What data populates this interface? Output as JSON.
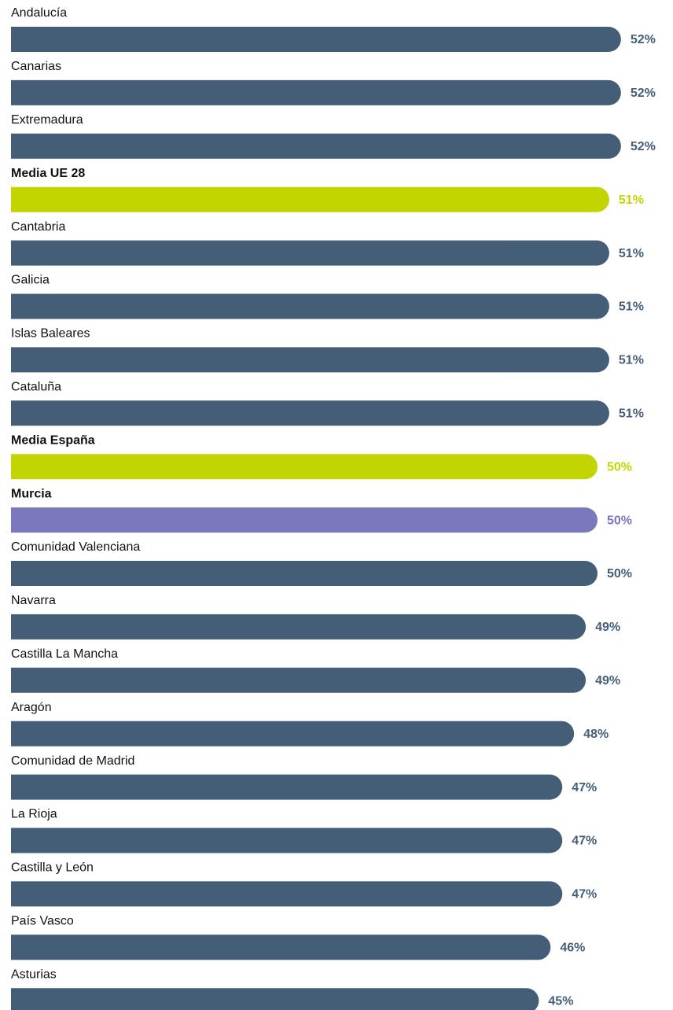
{
  "chart_data": {
    "type": "bar",
    "orientation": "horizontal",
    "categories": [
      "Andalucía",
      "Canarias",
      "Extremadura",
      "Media UE 28",
      "Cantabria",
      "Galicia",
      "Islas Baleares",
      "Cataluña",
      "Media España",
      "Murcia",
      "Comunidad Valenciana",
      "Navarra",
      "Castilla La Mancha",
      "Aragón",
      "Comunidad de Madrid",
      "La Rioja",
      "Castilla y León",
      "País Vasco",
      "Asturias"
    ],
    "values": [
      52,
      52,
      52,
      51,
      51,
      51,
      51,
      51,
      50,
      50,
      50,
      49,
      49,
      48,
      47,
      47,
      47,
      46,
      45
    ],
    "value_labels": [
      "52%",
      "52%",
      "52%",
      "51%",
      "51%",
      "51%",
      "51%",
      "51%",
      "50%",
      "50%",
      "50%",
      "49%",
      "49%",
      "48%",
      "47%",
      "47%",
      "47%",
      "46%",
      "45%"
    ],
    "color": "#445e78",
    "colors": [
      "#445e78",
      "#445e78",
      "#445e78",
      "#c2d500",
      "#445e78",
      "#445e78",
      "#445e78",
      "#445e78",
      "#c2d500",
      "#7b78bd",
      "#445e78",
      "#445e78",
      "#445e78",
      "#445e78",
      "#445e78",
      "#445e78",
      "#445e78",
      "#445e78",
      "#445e78"
    ]
  }
}
